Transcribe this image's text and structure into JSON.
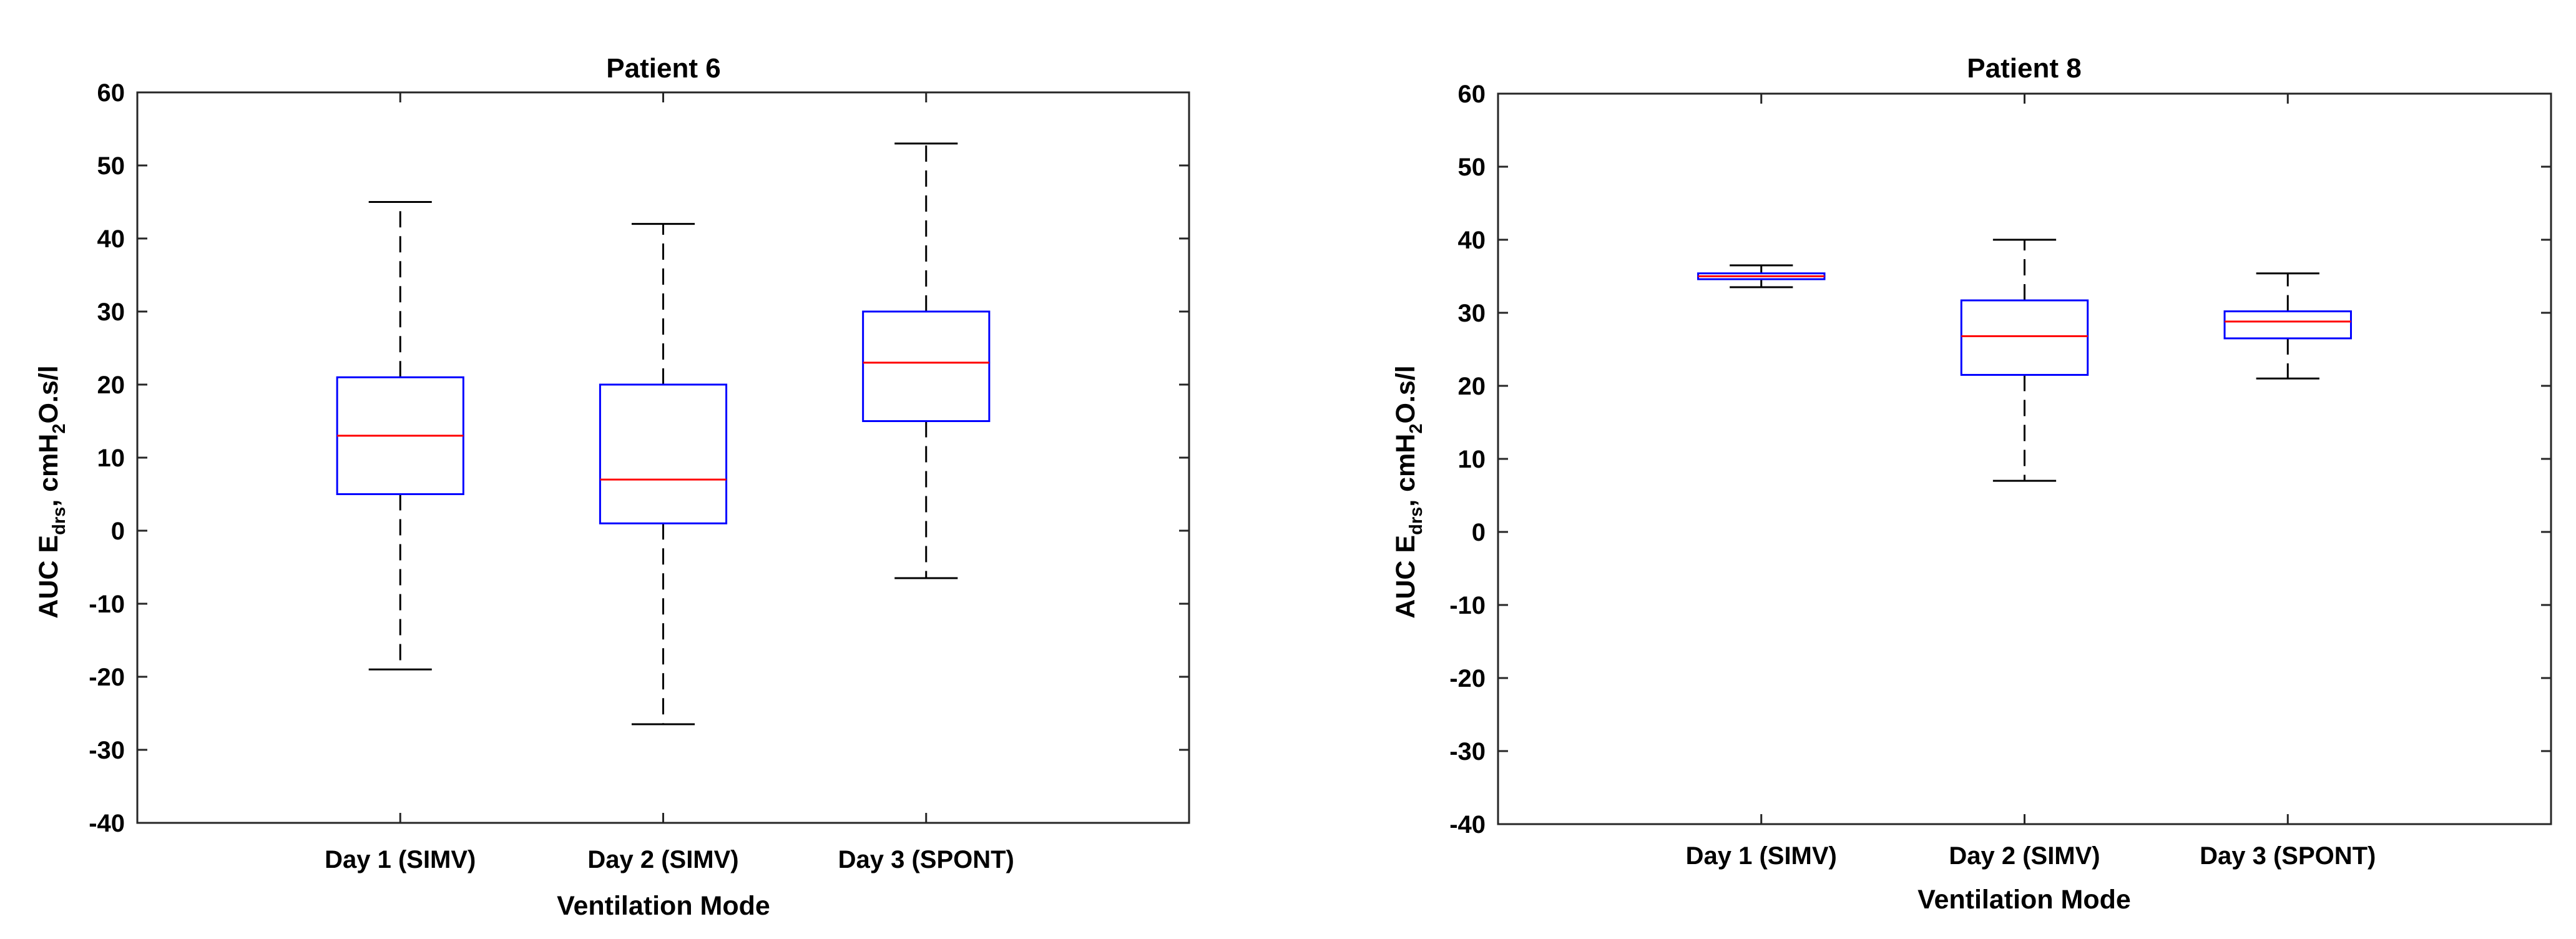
{
  "chart_data": [
    {
      "type": "boxplot",
      "title": "Patient 6",
      "xlabel": "Ventilation Mode",
      "ylabel": {
        "prefix": "AUC E",
        "sub1": "drs",
        "middle": ", cmH",
        "sub2": "2",
        "suffix": "O.s/l"
      },
      "ylim": [
        -40,
        60
      ],
      "yticks": [
        -40,
        -30,
        -20,
        -10,
        0,
        10,
        20,
        30,
        40,
        50,
        60
      ],
      "categories": [
        "Day 1 (SIMV)",
        "Day 2 (SIMV)",
        "Day 3 (SPONT)"
      ],
      "boxes": [
        {
          "whisker_low": -19,
          "q1": 5,
          "median": 13,
          "q3": 21,
          "whisker_high": 45
        },
        {
          "whisker_low": -26.5,
          "q1": 1,
          "median": 7,
          "q3": 20,
          "whisker_high": 42
        },
        {
          "whisker_low": -6.5,
          "q1": 15,
          "median": 23,
          "q3": 30,
          "whisker_high": 53
        }
      ]
    },
    {
      "type": "boxplot",
      "title": "Patient 8",
      "xlabel": "Ventilation Mode",
      "ylabel": {
        "prefix": "AUC E",
        "sub1": "drs",
        "middle": ", cmH",
        "sub2": "2",
        "suffix": "O.s/l"
      },
      "ylim": [
        -40,
        60
      ],
      "yticks": [
        -40,
        -30,
        -20,
        -10,
        0,
        10,
        20,
        30,
        40,
        50,
        60
      ],
      "categories": [
        "Day 1 (SIMV)",
        "Day 2 (SIMV)",
        "Day 3 (SPONT)"
      ],
      "boxes": [
        {
          "whisker_low": 33.5,
          "q1": 34.6,
          "median": 35,
          "q3": 35.4,
          "whisker_high": 36.5
        },
        {
          "whisker_low": 7,
          "q1": 21.5,
          "median": 26.8,
          "q3": 31.7,
          "whisker_high": 40
        },
        {
          "whisker_low": 21,
          "q1": 26.5,
          "median": 28.8,
          "q3": 30.2,
          "whisker_high": 35.4
        }
      ]
    }
  ],
  "colors": {
    "box": "#0000ff",
    "median": "#ff0000",
    "whisker": "#000000",
    "axis": "#262626"
  }
}
